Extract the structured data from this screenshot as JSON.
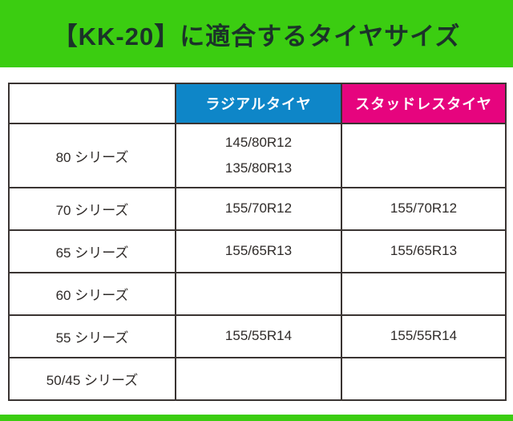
{
  "banner": {
    "title": "【KK-20】に適合するタイヤサイズ"
  },
  "colors": {
    "banner_green": "#3BCD11",
    "radial_blue": "#0E86C8",
    "studless_pink": "#E6047E",
    "border_dark": "#3A3432",
    "title_text": "#1B3329"
  },
  "table": {
    "columns": [
      "",
      "ラジアルタイヤ",
      "スタッドレスタイヤ"
    ],
    "rows": [
      {
        "series": "80 シリーズ",
        "radial": [
          "145/80R12",
          "135/80R13"
        ],
        "studless": []
      },
      {
        "series": "70 シリーズ",
        "radial": [
          "155/70R12"
        ],
        "studless": [
          "155/70R12"
        ]
      },
      {
        "series": "65 シリーズ",
        "radial": [
          "155/65R13"
        ],
        "studless": [
          "155/65R13"
        ]
      },
      {
        "series": "60 シリーズ",
        "radial": [],
        "studless": []
      },
      {
        "series": "55 シリーズ",
        "radial": [
          "155/55R14"
        ],
        "studless": [
          "155/55R14"
        ]
      },
      {
        "series": "50/45 シリーズ",
        "radial": [],
        "studless": []
      }
    ]
  }
}
